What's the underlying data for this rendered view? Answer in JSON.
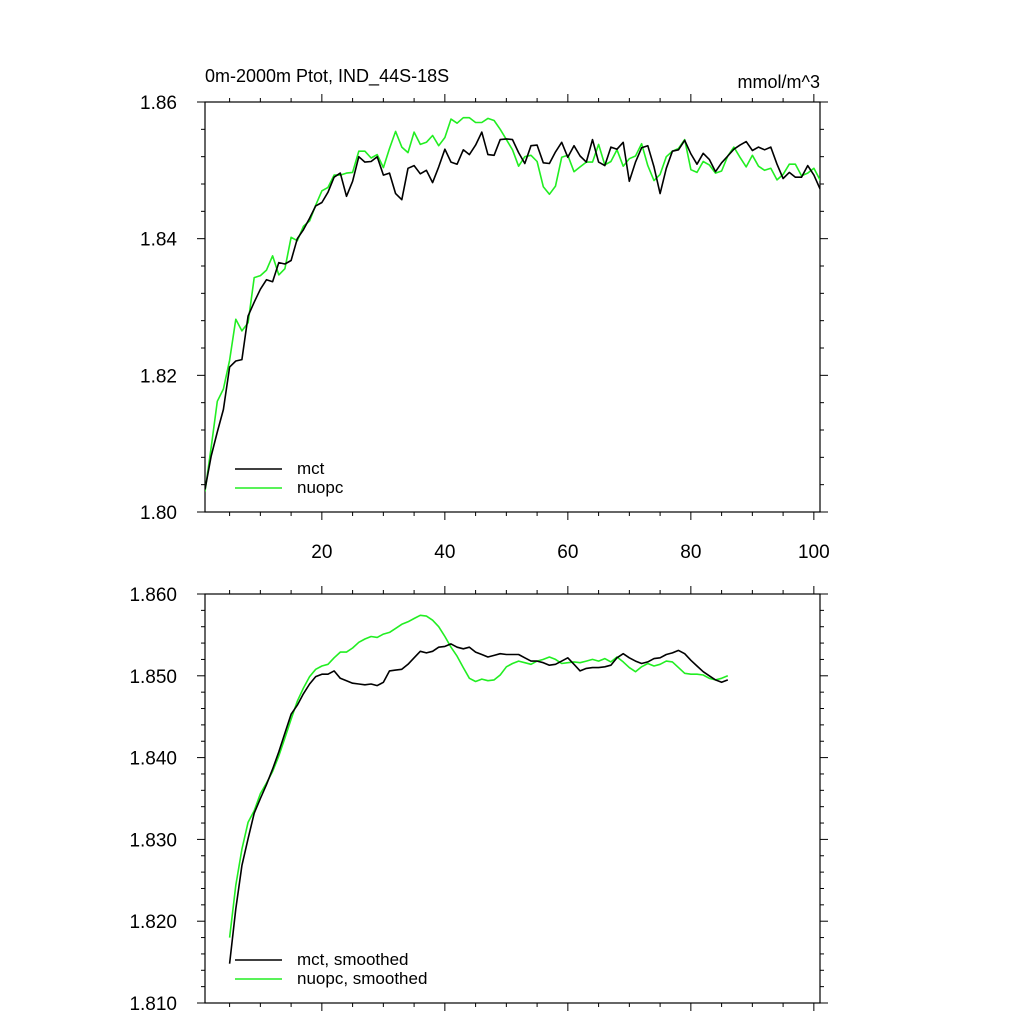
{
  "chart_data": [
    {
      "type": "line",
      "title": "0m-2000m Ptot, IND_44S-18S",
      "units_label": "mmol/m^3",
      "xlabel": "",
      "ylabel": "",
      "xlim": [
        1,
        101
      ],
      "ylim": [
        1.8,
        1.86
      ],
      "x_ticks": [
        20,
        40,
        60,
        80,
        100
      ],
      "x_tick_labels": [
        "20",
        "40",
        "60",
        "80",
        "100"
      ],
      "y_ticks": [
        1.8,
        1.82,
        1.84,
        1.86
      ],
      "y_tick_labels": [
        "1.80",
        "1.82",
        "1.84",
        "1.86"
      ],
      "grid": false,
      "legend_position": "bottom-left",
      "x_start": 1,
      "series": [
        {
          "name": "mct",
          "color": "#000000",
          "values": [
            1.8033,
            1.8082,
            1.8117,
            1.815,
            1.8212,
            1.8221,
            1.8223,
            1.8287,
            1.8307,
            1.8326,
            1.834,
            1.8337,
            1.8365,
            1.8363,
            1.8368,
            1.84,
            1.8413,
            1.843,
            1.8448,
            1.8453,
            1.8468,
            1.849,
            1.8496,
            1.8462,
            1.8484,
            1.852,
            1.8512,
            1.8513,
            1.852,
            1.8493,
            1.8496,
            1.8466,
            1.8457,
            1.8503,
            1.8507,
            1.8495,
            1.85,
            1.8482,
            1.8505,
            1.8531,
            1.8512,
            1.8509,
            1.853,
            1.8523,
            1.8537,
            1.8556,
            1.8523,
            1.8522,
            1.8545,
            1.8546,
            1.8545,
            1.8526,
            1.851,
            1.8536,
            1.8537,
            1.8511,
            1.851,
            1.8527,
            1.8541,
            1.8519,
            1.8536,
            1.8521,
            1.8512,
            1.8545,
            1.8512,
            1.8507,
            1.8534,
            1.8531,
            1.8541,
            1.8484,
            1.8512,
            1.8533,
            1.8536,
            1.8505,
            1.8466,
            1.8503,
            1.8528,
            1.853,
            1.8544,
            1.8524,
            1.8509,
            1.8525,
            1.8516,
            1.8498,
            1.8511,
            1.8521,
            1.8531,
            1.8537,
            1.8542,
            1.8529,
            1.8534,
            1.853,
            1.8534,
            1.8509,
            1.8488,
            1.8497,
            1.849,
            1.849,
            1.8507,
            1.8493,
            1.8473,
            1.8509
          ]
        },
        {
          "name": "nuopc",
          "color": "#22ee22",
          "values": [
            1.803,
            1.8095,
            1.8162,
            1.818,
            1.8222,
            1.8282,
            1.8265,
            1.8277,
            1.8343,
            1.8346,
            1.8354,
            1.8375,
            1.8347,
            1.8356,
            1.8402,
            1.8397,
            1.8418,
            1.8426,
            1.8449,
            1.847,
            1.8475,
            1.8493,
            1.8493,
            1.8496,
            1.8497,
            1.8528,
            1.8528,
            1.8518,
            1.8523,
            1.8504,
            1.8532,
            1.8557,
            1.8534,
            1.8526,
            1.8556,
            1.8538,
            1.8541,
            1.8551,
            1.8536,
            1.8548,
            1.8575,
            1.8569,
            1.8577,
            1.8577,
            1.857,
            1.857,
            1.8576,
            1.8573,
            1.856,
            1.8545,
            1.853,
            1.8506,
            1.852,
            1.8522,
            1.8513,
            1.8476,
            1.8465,
            1.8477,
            1.8519,
            1.8522,
            1.8498,
            1.8505,
            1.8512,
            1.8512,
            1.8538,
            1.8508,
            1.8513,
            1.853,
            1.8506,
            1.8517,
            1.8521,
            1.8539,
            1.8507,
            1.8485,
            1.8494,
            1.852,
            1.8528,
            1.8532,
            1.8545,
            1.8501,
            1.8497,
            1.8513,
            1.8508,
            1.8496,
            1.8499,
            1.8521,
            1.8534,
            1.8519,
            1.8505,
            1.8522,
            1.8506,
            1.85,
            1.8503,
            1.8486,
            1.8494,
            1.8509,
            1.8509,
            1.8492,
            1.8496,
            1.8503,
            1.8486,
            1.8511
          ]
        }
      ]
    },
    {
      "type": "line",
      "title": "",
      "xlabel": "",
      "ylabel": "",
      "xlim": [
        1,
        101
      ],
      "ylim": [
        1.81,
        1.86
      ],
      "x_ticks": [
        20,
        40,
        60,
        80,
        100
      ],
      "x_tick_labels": [],
      "y_ticks": [
        1.81,
        1.82,
        1.83,
        1.84,
        1.85,
        1.86
      ],
      "y_tick_labels": [
        "1.810",
        "1.820",
        "1.830",
        "1.840",
        "1.850",
        "1.860"
      ],
      "grid": false,
      "legend_position": "bottom-left",
      "x_start": 5,
      "series": [
        {
          "name": "mct, smoothed",
          "color": "#000000",
          "values": [
            1.8148,
            1.8215,
            1.8268,
            1.8301,
            1.8332,
            1.835,
            1.8367,
            1.8386,
            1.8407,
            1.843,
            1.8453,
            1.8464,
            1.8478,
            1.849,
            1.8499,
            1.8502,
            1.8502,
            1.8506,
            1.8497,
            1.8494,
            1.8491,
            1.849,
            1.8489,
            1.849,
            1.8488,
            1.8492,
            1.8506,
            1.8507,
            1.8508,
            1.8514,
            1.8522,
            1.853,
            1.8528,
            1.853,
            1.8535,
            1.8536,
            1.8539,
            1.8535,
            1.8533,
            1.8535,
            1.8529,
            1.8526,
            1.8523,
            1.8525,
            1.8527,
            1.8526,
            1.8526,
            1.8526,
            1.8522,
            1.8518,
            1.8518,
            1.8516,
            1.8513,
            1.8514,
            1.8518,
            1.8522,
            1.8514,
            1.8506,
            1.8509,
            1.851,
            1.851,
            1.8511,
            1.8513,
            1.8522,
            1.8527,
            1.8522,
            1.8518,
            1.8515,
            1.8517,
            1.8521,
            1.8522,
            1.8526,
            1.8528,
            1.8531,
            1.8527,
            1.8519,
            1.8512,
            1.8505,
            1.85,
            1.8495,
            1.8492,
            1.8495
          ]
        },
        {
          "name": "nuopc, smoothed",
          "color": "#22ee22",
          "values": [
            1.818,
            1.8244,
            1.8288,
            1.8321,
            1.8335,
            1.8356,
            1.8369,
            1.8383,
            1.8402,
            1.8424,
            1.8447,
            1.8469,
            1.8485,
            1.8499,
            1.8508,
            1.8512,
            1.8514,
            1.8522,
            1.8529,
            1.8529,
            1.8534,
            1.8541,
            1.8545,
            1.8548,
            1.8547,
            1.8551,
            1.8553,
            1.8558,
            1.8563,
            1.8566,
            1.857,
            1.8574,
            1.8573,
            1.8568,
            1.856,
            1.8548,
            1.8535,
            1.8524,
            1.851,
            1.8497,
            1.8493,
            1.8496,
            1.8494,
            1.8495,
            1.8501,
            1.8511,
            1.8515,
            1.8518,
            1.8516,
            1.8514,
            1.8518,
            1.852,
            1.8523,
            1.852,
            1.8515,
            1.8516,
            1.8517,
            1.8516,
            1.8518,
            1.852,
            1.8518,
            1.8521,
            1.8517,
            1.8523,
            1.8517,
            1.851,
            1.8505,
            1.8511,
            1.8515,
            1.8512,
            1.8514,
            1.8518,
            1.8517,
            1.851,
            1.8503,
            1.8502,
            1.8502,
            1.8501,
            1.8497,
            1.8495,
            1.8497,
            1.85
          ]
        }
      ]
    }
  ]
}
